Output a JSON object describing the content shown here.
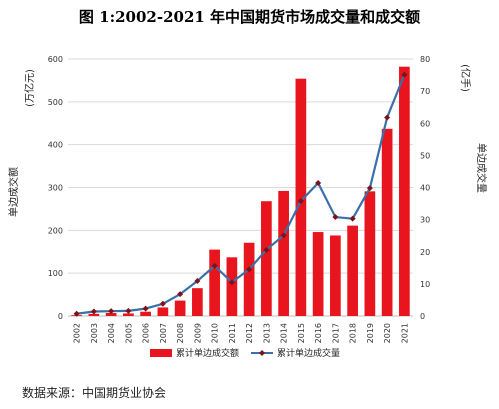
{
  "chart_data": {
    "type": "bar",
    "title": "图 1:2002-2021 年中国期货市场成交量和成交额",
    "categories": [
      "2002",
      "2003",
      "2004",
      "2005",
      "2006",
      "2007",
      "2008",
      "2009",
      "2010",
      "2011",
      "2012",
      "2013",
      "2014",
      "2015",
      "2016",
      "2017",
      "2018",
      "2019",
      "2020",
      "2021"
    ],
    "series": [
      {
        "name": "累计单边成交额",
        "type": "bar",
        "axis": "left",
        "color": "#e8141e",
        "values": [
          2,
          5,
          7,
          6,
          10,
          20,
          36,
          65,
          155,
          137,
          171,
          268,
          292,
          554,
          196,
          188,
          211,
          291,
          437,
          582
        ]
      },
      {
        "name": "累计单边成交量",
        "type": "line",
        "axis": "right",
        "color": "#3a6fa8",
        "marker_color": "#7a1418",
        "values": [
          0.7,
          1.4,
          1.5,
          1.6,
          2.3,
          3.8,
          6.8,
          10.9,
          15.6,
          10.5,
          14.5,
          20.6,
          25.1,
          35.8,
          41.4,
          30.8,
          30.3,
          39.8,
          61.8,
          75.1
        ]
      }
    ],
    "y_left": {
      "label_main": "单边成交额",
      "label_unit": "(万亿元)",
      "ylim": [
        0,
        600
      ],
      "ticks": [
        0,
        100,
        200,
        300,
        400,
        500,
        600
      ]
    },
    "y_right": {
      "label_main": "单边成交量",
      "label_unit": "(亿手)",
      "ylim": [
        0,
        80
      ],
      "ticks": [
        0,
        10,
        20,
        30,
        40,
        50,
        60,
        70,
        80
      ]
    },
    "grid": true,
    "legend_position": "bottom"
  },
  "source_text": "数据来源：中国期货业协会"
}
